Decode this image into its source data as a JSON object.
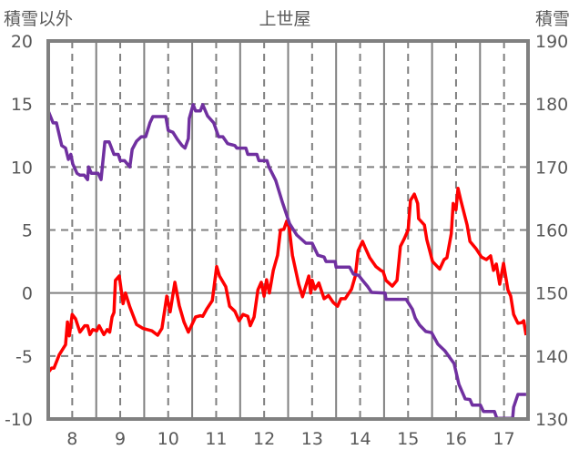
{
  "chart_data": {
    "type": "line",
    "title": "上世屋",
    "ylabel_left": "積雪以外",
    "ylabel_right": "積雪",
    "xlim": [
      7.5,
      17.5
    ],
    "ylim_left": [
      -10,
      20
    ],
    "ylim_right": [
      130,
      190
    ],
    "x_ticks": [
      8,
      9,
      10,
      11,
      12,
      13,
      14,
      15,
      16,
      17
    ],
    "y_ticks_left": [
      -10,
      -5,
      0,
      5,
      10,
      15,
      20
    ],
    "y_ticks_right": [
      130,
      140,
      150,
      160,
      170,
      180,
      190
    ],
    "grid": true,
    "colors": {
      "temperature": "#FF0000",
      "snow": "#7030A0",
      "axis": "#808080",
      "text": "#595959"
    },
    "series": [
      {
        "name": "積雪以外",
        "axis": "left",
        "color": "#FF0000",
        "points": [
          [
            7.5,
            -6.3
          ],
          [
            7.57,
            -5.96
          ],
          [
            7.62,
            -5.96
          ],
          [
            7.73,
            -4.9
          ],
          [
            7.86,
            -4.1
          ],
          [
            7.9,
            -2.3
          ],
          [
            7.94,
            -3.4
          ],
          [
            8.0,
            -1.7
          ],
          [
            8.07,
            -2.05
          ],
          [
            8.16,
            -3.1
          ],
          [
            8.26,
            -2.6
          ],
          [
            8.32,
            -2.6
          ],
          [
            8.37,
            -3.3
          ],
          [
            8.43,
            -2.9
          ],
          [
            8.51,
            -3.0
          ],
          [
            8.56,
            -2.6
          ],
          [
            8.66,
            -3.3
          ],
          [
            8.73,
            -2.9
          ],
          [
            8.78,
            -3.1
          ],
          [
            8.83,
            -1.9
          ],
          [
            8.87,
            -1.55
          ],
          [
            8.9,
            1.0
          ],
          [
            8.98,
            1.35
          ],
          [
            9.06,
            -0.85
          ],
          [
            9.11,
            0.0
          ],
          [
            9.2,
            -1.1
          ],
          [
            9.34,
            -2.5
          ],
          [
            9.47,
            -2.8
          ],
          [
            9.66,
            -3.0
          ],
          [
            9.78,
            -3.35
          ],
          [
            9.87,
            -2.8
          ],
          [
            9.97,
            -0.25
          ],
          [
            10.04,
            -1.5
          ],
          [
            10.14,
            0.85
          ],
          [
            10.23,
            -1.0
          ],
          [
            10.33,
            -2.3
          ],
          [
            10.42,
            -3.1
          ],
          [
            10.57,
            -1.9
          ],
          [
            10.67,
            -1.8
          ],
          [
            10.72,
            -1.85
          ],
          [
            10.8,
            -1.3
          ],
          [
            10.92,
            -0.6
          ],
          [
            11.01,
            2.1
          ],
          [
            11.07,
            1.35
          ],
          [
            11.2,
            0.5
          ],
          [
            11.28,
            -1.05
          ],
          [
            11.39,
            -1.45
          ],
          [
            11.48,
            -2.2
          ],
          [
            11.56,
            -1.7
          ],
          [
            11.66,
            -1.85
          ],
          [
            11.71,
            -2.6
          ],
          [
            11.79,
            -1.9
          ],
          [
            11.87,
            0.25
          ],
          [
            11.94,
            0.85
          ],
          [
            12.0,
            -0.25
          ],
          [
            12.05,
            1.05
          ],
          [
            12.11,
            0.0
          ],
          [
            12.19,
            1.8
          ],
          [
            12.28,
            3.0
          ],
          [
            12.34,
            5.0
          ],
          [
            12.41,
            5.05
          ],
          [
            12.47,
            5.7
          ],
          [
            12.52,
            5.2
          ],
          [
            12.59,
            3.0
          ],
          [
            12.72,
            0.7
          ],
          [
            12.8,
            -0.3
          ],
          [
            12.93,
            1.35
          ],
          [
            12.97,
            0.0
          ],
          [
            13.0,
            1.0
          ],
          [
            13.06,
            0.3
          ],
          [
            13.14,
            0.8
          ],
          [
            13.25,
            -0.45
          ],
          [
            13.34,
            -0.2
          ],
          [
            13.44,
            -0.75
          ],
          [
            13.53,
            -1.05
          ],
          [
            13.6,
            -0.45
          ],
          [
            13.69,
            -0.45
          ],
          [
            13.82,
            0.3
          ],
          [
            13.9,
            1.35
          ],
          [
            13.96,
            3.35
          ],
          [
            14.05,
            4.1
          ],
          [
            14.1,
            3.65
          ],
          [
            14.2,
            2.8
          ],
          [
            14.33,
            2.1
          ],
          [
            14.43,
            1.8
          ],
          [
            14.48,
            1.7
          ],
          [
            14.54,
            1.0
          ],
          [
            14.67,
            0.55
          ],
          [
            14.77,
            1.0
          ],
          [
            14.84,
            3.7
          ],
          [
            14.92,
            4.3
          ],
          [
            15.0,
            5.0
          ],
          [
            15.02,
            5.9
          ],
          [
            15.05,
            7.35
          ],
          [
            15.13,
            7.85
          ],
          [
            15.2,
            7.1
          ],
          [
            15.22,
            5.9
          ],
          [
            15.34,
            5.4
          ],
          [
            15.39,
            4.25
          ],
          [
            15.51,
            2.5
          ],
          [
            15.66,
            1.9
          ],
          [
            15.75,
            2.65
          ],
          [
            15.81,
            2.8
          ],
          [
            15.9,
            4.7
          ],
          [
            15.94,
            7.1
          ],
          [
            16.0,
            6.6
          ],
          [
            16.04,
            8.3
          ],
          [
            16.1,
            7.35
          ],
          [
            16.23,
            5.4
          ],
          [
            16.29,
            4.1
          ],
          [
            16.42,
            3.5
          ],
          [
            16.53,
            2.85
          ],
          [
            16.63,
            2.65
          ],
          [
            16.72,
            2.95
          ],
          [
            16.78,
            1.8
          ],
          [
            16.84,
            2.3
          ],
          [
            16.91,
            0.7
          ],
          [
            16.99,
            2.35
          ],
          [
            17.08,
            0.25
          ],
          [
            17.14,
            -0.25
          ],
          [
            17.2,
            -1.7
          ],
          [
            17.29,
            -2.4
          ],
          [
            17.37,
            -2.35
          ],
          [
            17.41,
            -2.2
          ],
          [
            17.46,
            -3.35
          ]
        ]
      },
      {
        "name": "積雪",
        "axis": "right",
        "color": "#7030A0",
        "points": [
          [
            7.5,
            178.9
          ],
          [
            7.6,
            177.0
          ],
          [
            7.67,
            177.0
          ],
          [
            7.78,
            173.4
          ],
          [
            7.86,
            173.0
          ],
          [
            7.92,
            171.2
          ],
          [
            7.97,
            172.0
          ],
          [
            8.01,
            170.5
          ],
          [
            8.1,
            169.0
          ],
          [
            8.16,
            168.7
          ],
          [
            8.25,
            168.7
          ],
          [
            8.32,
            168.0
          ],
          [
            8.34,
            170.0
          ],
          [
            8.4,
            169.0
          ],
          [
            8.54,
            169.0
          ],
          [
            8.6,
            168.0
          ],
          [
            8.68,
            174.0
          ],
          [
            8.77,
            174.0
          ],
          [
            8.87,
            172.0
          ],
          [
            8.96,
            172.0
          ],
          [
            9.0,
            171.0
          ],
          [
            9.09,
            171.0
          ],
          [
            9.2,
            170.0
          ],
          [
            9.25,
            172.8
          ],
          [
            9.34,
            174.1
          ],
          [
            9.44,
            174.8
          ],
          [
            9.53,
            174.8
          ],
          [
            9.62,
            177.0
          ],
          [
            9.68,
            178.0
          ],
          [
            9.95,
            178.0
          ],
          [
            10.0,
            175.8
          ],
          [
            10.1,
            175.5
          ],
          [
            10.19,
            174.4
          ],
          [
            10.29,
            173.4
          ],
          [
            10.35,
            173.0
          ],
          [
            10.42,
            174.5
          ],
          [
            10.44,
            177.7
          ],
          [
            10.52,
            179.9
          ],
          [
            10.57,
            178.9
          ],
          [
            10.67,
            178.9
          ],
          [
            10.72,
            179.9
          ],
          [
            10.82,
            178.1
          ],
          [
            10.95,
            177.0
          ],
          [
            11.05,
            174.8
          ],
          [
            11.14,
            174.8
          ],
          [
            11.24,
            173.7
          ],
          [
            11.39,
            173.4
          ],
          [
            11.43,
            173.0
          ],
          [
            11.62,
            173.0
          ],
          [
            11.66,
            172.0
          ],
          [
            11.85,
            172.0
          ],
          [
            11.89,
            171.0
          ],
          [
            12.06,
            171.0
          ],
          [
            12.1,
            170.0
          ],
          [
            12.24,
            167.9
          ],
          [
            12.38,
            164.4
          ],
          [
            12.53,
            161.0
          ],
          [
            12.68,
            159.2
          ],
          [
            12.87,
            157.9
          ],
          [
            13.0,
            157.9
          ],
          [
            13.12,
            156.0
          ],
          [
            13.25,
            155.7
          ],
          [
            13.29,
            155.0
          ],
          [
            13.48,
            155.0
          ],
          [
            13.5,
            154.1
          ],
          [
            13.78,
            154.1
          ],
          [
            13.86,
            153.0
          ],
          [
            13.97,
            152.8
          ],
          [
            14.05,
            152.0
          ],
          [
            14.16,
            151.0
          ],
          [
            14.24,
            150.1
          ],
          [
            14.52,
            150.0
          ],
          [
            14.54,
            149.0
          ],
          [
            14.96,
            149.0
          ],
          [
            15.09,
            147.4
          ],
          [
            15.15,
            146.0
          ],
          [
            15.24,
            144.9
          ],
          [
            15.37,
            143.9
          ],
          [
            15.49,
            143.7
          ],
          [
            15.62,
            141.9
          ],
          [
            15.77,
            140.8
          ],
          [
            15.96,
            138.8
          ],
          [
            16.06,
            135.5
          ],
          [
            16.19,
            133.2
          ],
          [
            16.29,
            133.1
          ],
          [
            16.34,
            132.2
          ],
          [
            16.51,
            132.2
          ],
          [
            16.57,
            131.2
          ],
          [
            16.8,
            131.2
          ],
          [
            16.85,
            130.1
          ],
          [
            17.18,
            130.1
          ],
          [
            17.2,
            131.9
          ],
          [
            17.29,
            133.9
          ],
          [
            17.46,
            133.9
          ]
        ]
      }
    ]
  }
}
